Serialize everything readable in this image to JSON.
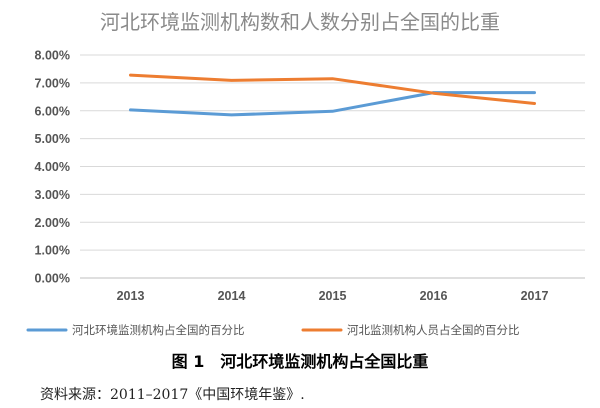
{
  "chart_data": {
    "type": "line",
    "title": "河北环境监测机构数和人数分别占全国的比重",
    "categories": [
      "2013",
      "2014",
      "2015",
      "2016",
      "2017"
    ],
    "series": [
      {
        "name": "河北环境监测机构占全国的百分比",
        "values": [
          6.03,
          5.85,
          5.98,
          6.65,
          6.65
        ],
        "color": "#5b9bd5"
      },
      {
        "name": "河北监测机构人员占全国的百分比",
        "values": [
          7.28,
          7.09,
          7.15,
          6.63,
          6.26
        ],
        "color": "#ed7d31"
      }
    ],
    "ylim": [
      0,
      8
    ],
    "yticks": [
      "0.00%",
      "1.00%",
      "2.00%",
      "3.00%",
      "4.00%",
      "5.00%",
      "6.00%",
      "7.00%",
      "8.00%"
    ],
    "grid": true,
    "legend": "bottom"
  },
  "caption": "图 1　河北环境监测机构占全国比重",
  "source": "资料来源：2011–2017《中国环境年鉴》."
}
